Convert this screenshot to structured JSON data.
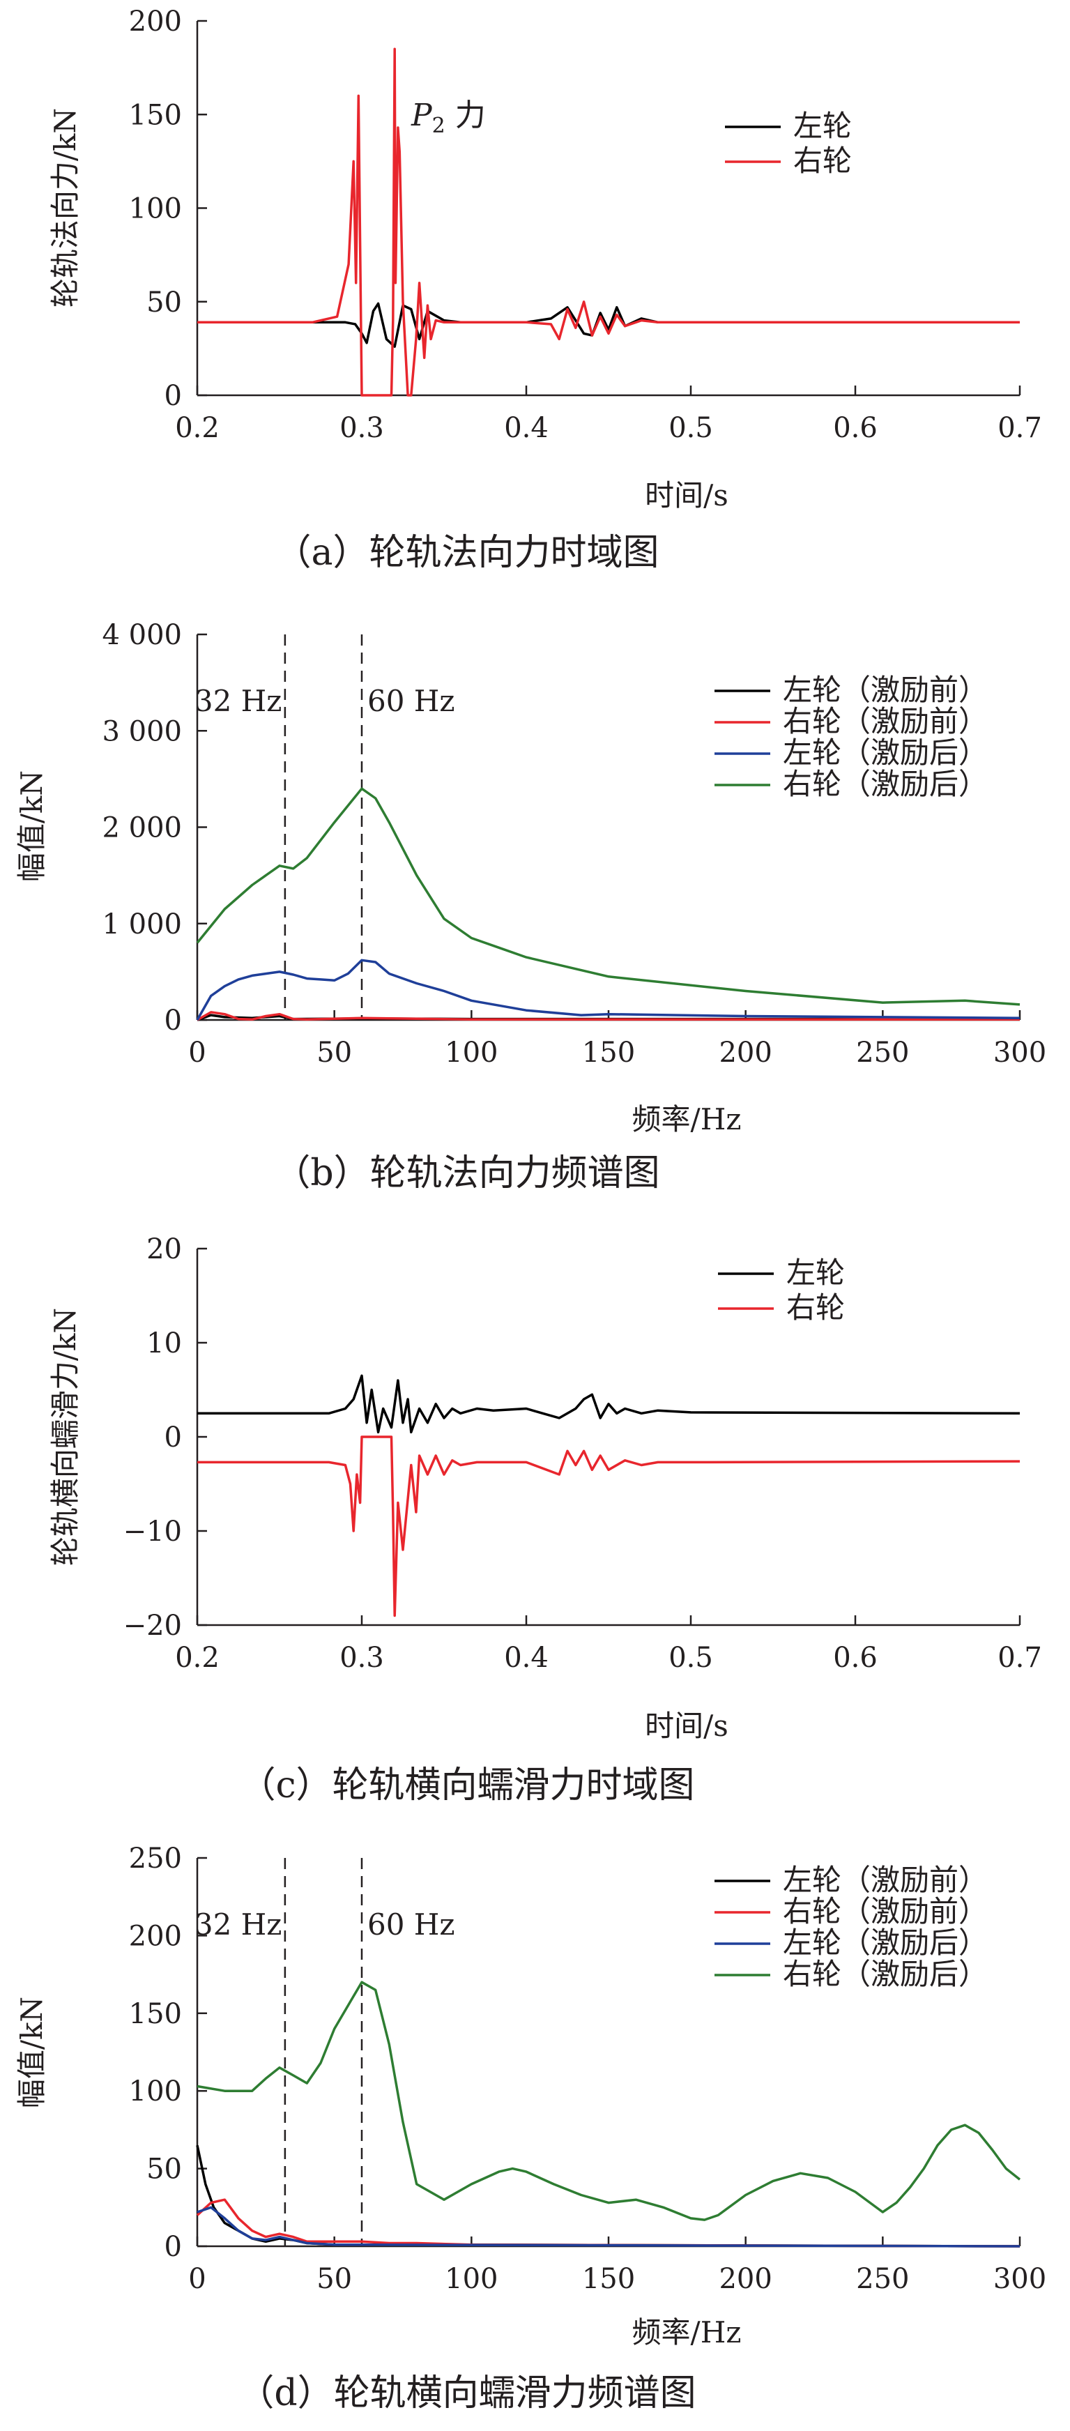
{
  "chart_data": [
    {
      "type": "line",
      "caption": "（a）轮轨法向力时域图",
      "xlabel": "时间/s",
      "ylabel": "轮轨法向力/kN",
      "xlim": [
        0.2,
        0.7
      ],
      "ylim": [
        0,
        200
      ],
      "xticks": [
        "0.2",
        "0.3",
        "0.4",
        "0.5",
        "0.6",
        "0.7"
      ],
      "yticks": [
        "0",
        "50",
        "100",
        "150",
        "200"
      ],
      "annotations": [
        {
          "text_italic": "P",
          "subscript": "2",
          "suffix": " 力"
        }
      ],
      "legend_position": "top-right",
      "series": [
        {
          "name": "左轮",
          "color": "#000000",
          "x": [
            0.2,
            0.29,
            0.296,
            0.3,
            0.303,
            0.307,
            0.31,
            0.315,
            0.32,
            0.325,
            0.33,
            0.335,
            0.34,
            0.35,
            0.36,
            0.4,
            0.415,
            0.425,
            0.43,
            0.435,
            0.44,
            0.445,
            0.45,
            0.455,
            0.46,
            0.47,
            0.48,
            0.5,
            0.7
          ],
          "values": [
            39,
            39,
            38,
            33,
            28,
            45,
            49,
            30,
            26,
            48,
            46,
            30,
            45,
            40,
            39,
            39,
            41,
            47,
            40,
            33,
            32,
            44,
            35,
            47,
            37,
            41,
            39,
            39,
            39
          ]
        },
        {
          "name": "右轮",
          "color": "#e8262d",
          "x": [
            0.2,
            0.27,
            0.285,
            0.292,
            0.295,
            0.2965,
            0.298,
            0.2995,
            0.3,
            0.31,
            0.318,
            0.319,
            0.32,
            0.3205,
            0.322,
            0.323,
            0.325,
            0.328,
            0.33,
            0.333,
            0.335,
            0.338,
            0.34,
            0.342,
            0.345,
            0.35,
            0.36,
            0.4,
            0.415,
            0.42,
            0.425,
            0.43,
            0.435,
            0.44,
            0.445,
            0.45,
            0.455,
            0.46,
            0.47,
            0.48,
            0.5,
            0.7
          ],
          "values": [
            39,
            39,
            42,
            70,
            125,
            60,
            160,
            40,
            0,
            0,
            0,
            40,
            185,
            60,
            143,
            130,
            50,
            0,
            0,
            30,
            60,
            20,
            48,
            30,
            40,
            39,
            39,
            39,
            38,
            30,
            46,
            36,
            50,
            32,
            42,
            33,
            43,
            37,
            40,
            39,
            39,
            39
          ]
        }
      ]
    },
    {
      "type": "line",
      "caption": "（b）轮轨法向力频谱图",
      "xlabel": "频率/Hz",
      "ylabel": "幅值/kN",
      "xlim": [
        0,
        300
      ],
      "ylim": [
        0,
        4000
      ],
      "xticks": [
        "0",
        "50",
        "100",
        "150",
        "200",
        "250",
        "300"
      ],
      "yticks": [
        "0",
        "1 000",
        "2 000",
        "3 000",
        "4 000"
      ],
      "vlines": [
        {
          "x": 32,
          "label": "32 Hz"
        },
        {
          "x": 60,
          "label": "60 Hz"
        }
      ],
      "legend_position": "top-right",
      "series": [
        {
          "name": "左轮（激励前）",
          "color": "#000000",
          "x": [
            0,
            5,
            10,
            20,
            30,
            35,
            60,
            100,
            300
          ],
          "values": [
            0,
            50,
            30,
            20,
            40,
            10,
            15,
            10,
            10
          ]
        },
        {
          "name": "右轮（激励前）",
          "color": "#e8262d",
          "x": [
            0,
            5,
            10,
            15,
            20,
            25,
            30,
            35,
            40,
            60,
            100,
            300
          ],
          "values": [
            0,
            80,
            60,
            10,
            5,
            40,
            60,
            10,
            5,
            20,
            5,
            5
          ]
        },
        {
          "name": "左轮（激励后）",
          "color": "#1f3f99",
          "x": [
            0,
            5,
            10,
            15,
            20,
            25,
            30,
            35,
            40,
            45,
            50,
            55,
            60,
            65,
            70,
            80,
            90,
            100,
            120,
            140,
            150,
            200,
            250,
            300
          ],
          "values": [
            0,
            250,
            350,
            420,
            460,
            480,
            500,
            470,
            430,
            420,
            410,
            480,
            620,
            600,
            480,
            380,
            300,
            200,
            100,
            50,
            60,
            40,
            30,
            20
          ]
        },
        {
          "name": "右轮（激励后）",
          "color": "#2e7d32",
          "x": [
            0,
            10,
            20,
            30,
            35,
            40,
            50,
            60,
            65,
            70,
            80,
            90,
            100,
            110,
            120,
            150,
            200,
            250,
            280,
            300
          ],
          "values": [
            800,
            1150,
            1400,
            1600,
            1570,
            1680,
            2050,
            2400,
            2300,
            2050,
            1500,
            1050,
            850,
            750,
            650,
            450,
            300,
            180,
            200,
            160
          ]
        }
      ]
    },
    {
      "type": "line",
      "caption": "（c）轮轨横向蠕滑力时域图",
      "xlabel": "时间/s",
      "ylabel": "轮轨横向蠕滑力/kN",
      "xlim": [
        0.2,
        0.7
      ],
      "ylim": [
        -20,
        20
      ],
      "xticks": [
        "0.2",
        "0.3",
        "0.4",
        "0.5",
        "0.6",
        "0.7"
      ],
      "yticks": [
        "−20",
        "−10",
        "0",
        "10",
        "20"
      ],
      "legend_position": "top-right",
      "series": [
        {
          "name": "左轮",
          "color": "#000000",
          "x": [
            0.2,
            0.28,
            0.29,
            0.295,
            0.3,
            0.303,
            0.306,
            0.31,
            0.313,
            0.318,
            0.322,
            0.325,
            0.328,
            0.33,
            0.335,
            0.34,
            0.345,
            0.35,
            0.355,
            0.36,
            0.37,
            0.38,
            0.4,
            0.41,
            0.42,
            0.43,
            0.435,
            0.44,
            0.445,
            0.45,
            0.455,
            0.46,
            0.47,
            0.48,
            0.5,
            0.7
          ],
          "values": [
            2.5,
            2.5,
            3,
            4,
            6.5,
            1.5,
            5,
            0.5,
            3,
            1,
            6,
            1.5,
            4,
            0.5,
            3,
            1.5,
            3.5,
            2,
            3,
            2.5,
            3,
            2.8,
            3,
            2.5,
            2,
            3,
            4,
            4.5,
            2,
            3.5,
            2.5,
            3,
            2.5,
            2.8,
            2.6,
            2.5
          ]
        },
        {
          "name": "右轮",
          "color": "#e8262d",
          "x": [
            0.2,
            0.28,
            0.29,
            0.293,
            0.295,
            0.297,
            0.299,
            0.3,
            0.318,
            0.319,
            0.32,
            0.322,
            0.325,
            0.33,
            0.333,
            0.335,
            0.34,
            0.345,
            0.35,
            0.355,
            0.36,
            0.37,
            0.4,
            0.42,
            0.425,
            0.43,
            0.435,
            0.44,
            0.445,
            0.45,
            0.46,
            0.47,
            0.48,
            0.5,
            0.7
          ],
          "values": [
            -2.7,
            -2.7,
            -3,
            -5,
            -10,
            -4,
            -7,
            0,
            0,
            -8,
            -19,
            -7,
            -12,
            -3,
            -8,
            -2,
            -4,
            -2,
            -4,
            -2.5,
            -3,
            -2.7,
            -2.7,
            -4,
            -1.5,
            -3,
            -1.5,
            -3.5,
            -2,
            -3.5,
            -2.5,
            -3,
            -2.7,
            -2.7,
            -2.6
          ]
        }
      ]
    },
    {
      "type": "line",
      "caption": "（d）轮轨横向蠕滑力频谱图",
      "xlabel": "频率/Hz",
      "ylabel": "幅值/kN",
      "xlim": [
        0,
        300
      ],
      "ylim": [
        0,
        250
      ],
      "xticks": [
        "0",
        "50",
        "100",
        "150",
        "200",
        "250",
        "300"
      ],
      "yticks": [
        "0",
        "50",
        "100",
        "150",
        "200",
        "250"
      ],
      "vlines": [
        {
          "x": 32,
          "label": "32 Hz"
        },
        {
          "x": 60,
          "label": "60 Hz"
        }
      ],
      "legend_position": "top-right",
      "series": [
        {
          "name": "左轮（激励前）",
          "color": "#000000",
          "x": [
            0,
            3,
            6,
            10,
            15,
            20,
            25,
            30,
            35,
            40,
            50,
            60,
            100,
            300
          ],
          "values": [
            65,
            40,
            25,
            15,
            10,
            5,
            3,
            5,
            4,
            2,
            1,
            1,
            1,
            0
          ]
        },
        {
          "name": "右轮（激励前）",
          "color": "#e8262d",
          "x": [
            0,
            5,
            10,
            15,
            20,
            25,
            30,
            35,
            40,
            50,
            60,
            70,
            80,
            100,
            300
          ],
          "values": [
            20,
            28,
            30,
            18,
            10,
            6,
            8,
            6,
            3,
            3,
            3,
            2,
            2,
            1,
            0
          ]
        },
        {
          "name": "左轮（激励后）",
          "color": "#1f3f99",
          "x": [
            0,
            5,
            10,
            15,
            20,
            25,
            30,
            35,
            40,
            50,
            60,
            300
          ],
          "values": [
            22,
            25,
            18,
            10,
            5,
            4,
            6,
            4,
            2,
            1,
            1,
            0
          ]
        },
        {
          "name": "右轮（激励后）",
          "color": "#2e7d32",
          "x": [
            0,
            10,
            20,
            25,
            30,
            35,
            40,
            45,
            50,
            55,
            60,
            65,
            70,
            75,
            80,
            85,
            90,
            95,
            100,
            110,
            115,
            120,
            130,
            140,
            150,
            160,
            170,
            180,
            185,
            190,
            200,
            210,
            220,
            230,
            240,
            250,
            255,
            260,
            265,
            270,
            275,
            280,
            285,
            290,
            295,
            300
          ],
          "values": [
            103,
            100,
            100,
            108,
            115,
            110,
            105,
            118,
            140,
            155,
            170,
            165,
            130,
            80,
            40,
            35,
            30,
            35,
            40,
            48,
            50,
            48,
            40,
            33,
            28,
            30,
            25,
            18,
            17,
            20,
            33,
            42,
            47,
            44,
            35,
            22,
            28,
            38,
            50,
            65,
            75,
            78,
            73,
            62,
            50,
            43
          ]
        }
      ]
    }
  ]
}
